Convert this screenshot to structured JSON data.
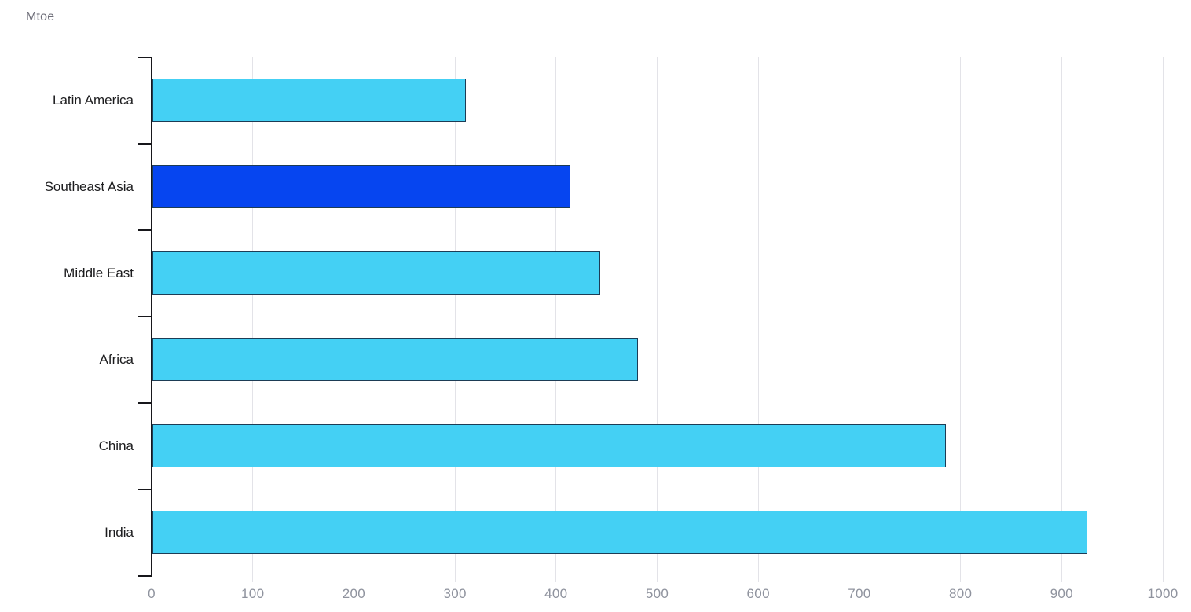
{
  "unit_label": "Mtoe",
  "colors": {
    "bar_default": "#44d0f4",
    "bar_highlight": "#0645f0",
    "bar_border": "#1d3c55",
    "axis_line": "#17171b",
    "gridline": "#e3e3e8",
    "tick_label": "#8f939e",
    "category_label": "#1c1c1e",
    "unit_label": "#6d6d78"
  },
  "chart_data": {
    "type": "bar",
    "orientation": "horizontal",
    "title": "",
    "unit": "Mtoe",
    "categories": [
      "Latin America",
      "Southeast Asia",
      "Middle East",
      "Africa",
      "China",
      "India"
    ],
    "values": [
      310,
      413,
      443,
      480,
      785,
      925
    ],
    "highlighted_category": "Southeast Asia",
    "xlabel": "",
    "ylabel": "",
    "xlim": [
      0,
      1000
    ],
    "x_ticks": [
      0,
      100,
      200,
      300,
      400,
      500,
      600,
      700,
      800,
      900,
      1000
    ],
    "grid": "vertical",
    "legend": "none"
  }
}
